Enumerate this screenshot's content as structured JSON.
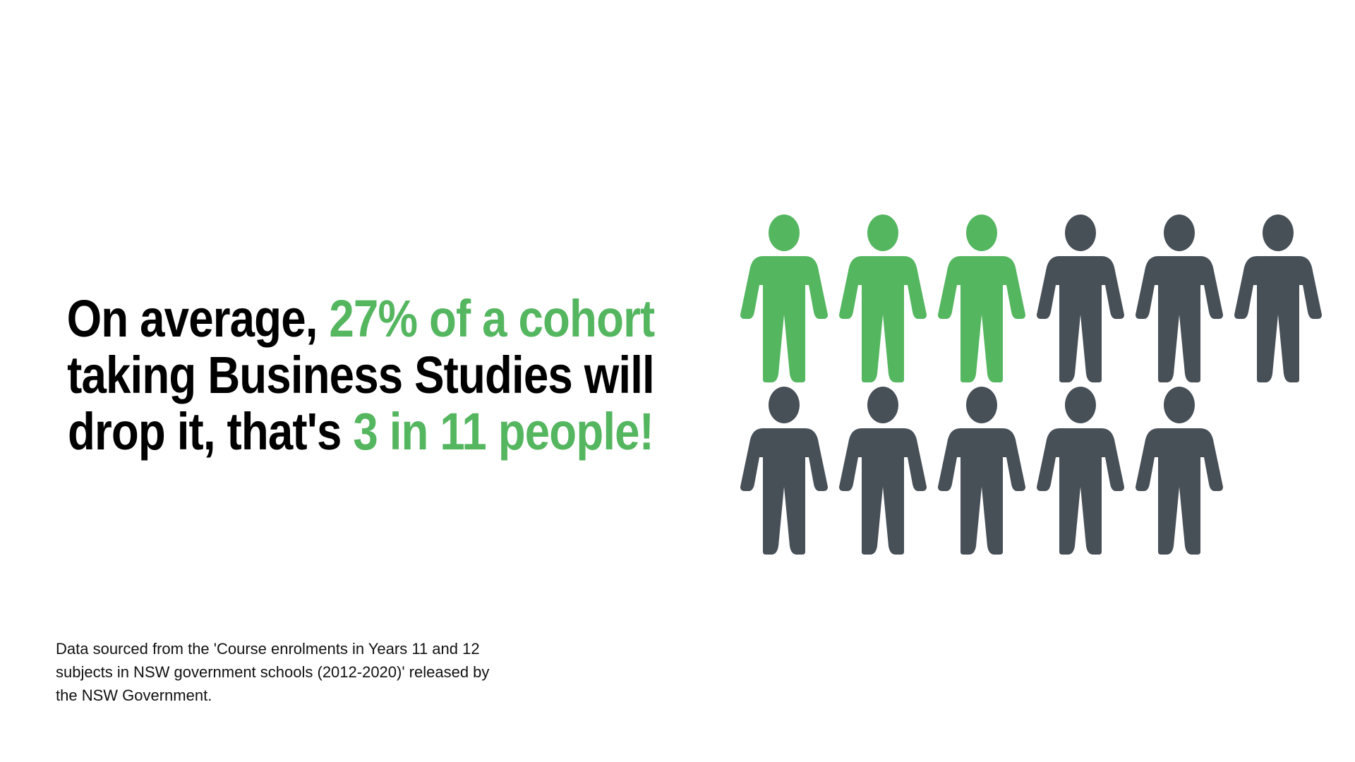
{
  "headline": {
    "line1_a": "On average, ",
    "line1_b": "27% of a cohort",
    "line2": "taking Business Studies will",
    "line3_a": "drop it, that's ",
    "line3_b": "3 in 11 people!"
  },
  "footnote": {
    "line1": "Data sourced from the 'Course enrolments in Years 11 and 12",
    "line2": "subjects in NSW government schools (2012-2020)' released by",
    "line3": "the NSW Government."
  },
  "colors": {
    "highlight": "#55b660",
    "base": "#474f57",
    "text": "#000000"
  },
  "chart_data": {
    "type": "pictogram",
    "icon": "person-icon",
    "total": 11,
    "highlighted": 3,
    "percent": 27,
    "rows": [
      6,
      5
    ],
    "highlight_color": "#55b660",
    "base_color": "#474f57"
  }
}
